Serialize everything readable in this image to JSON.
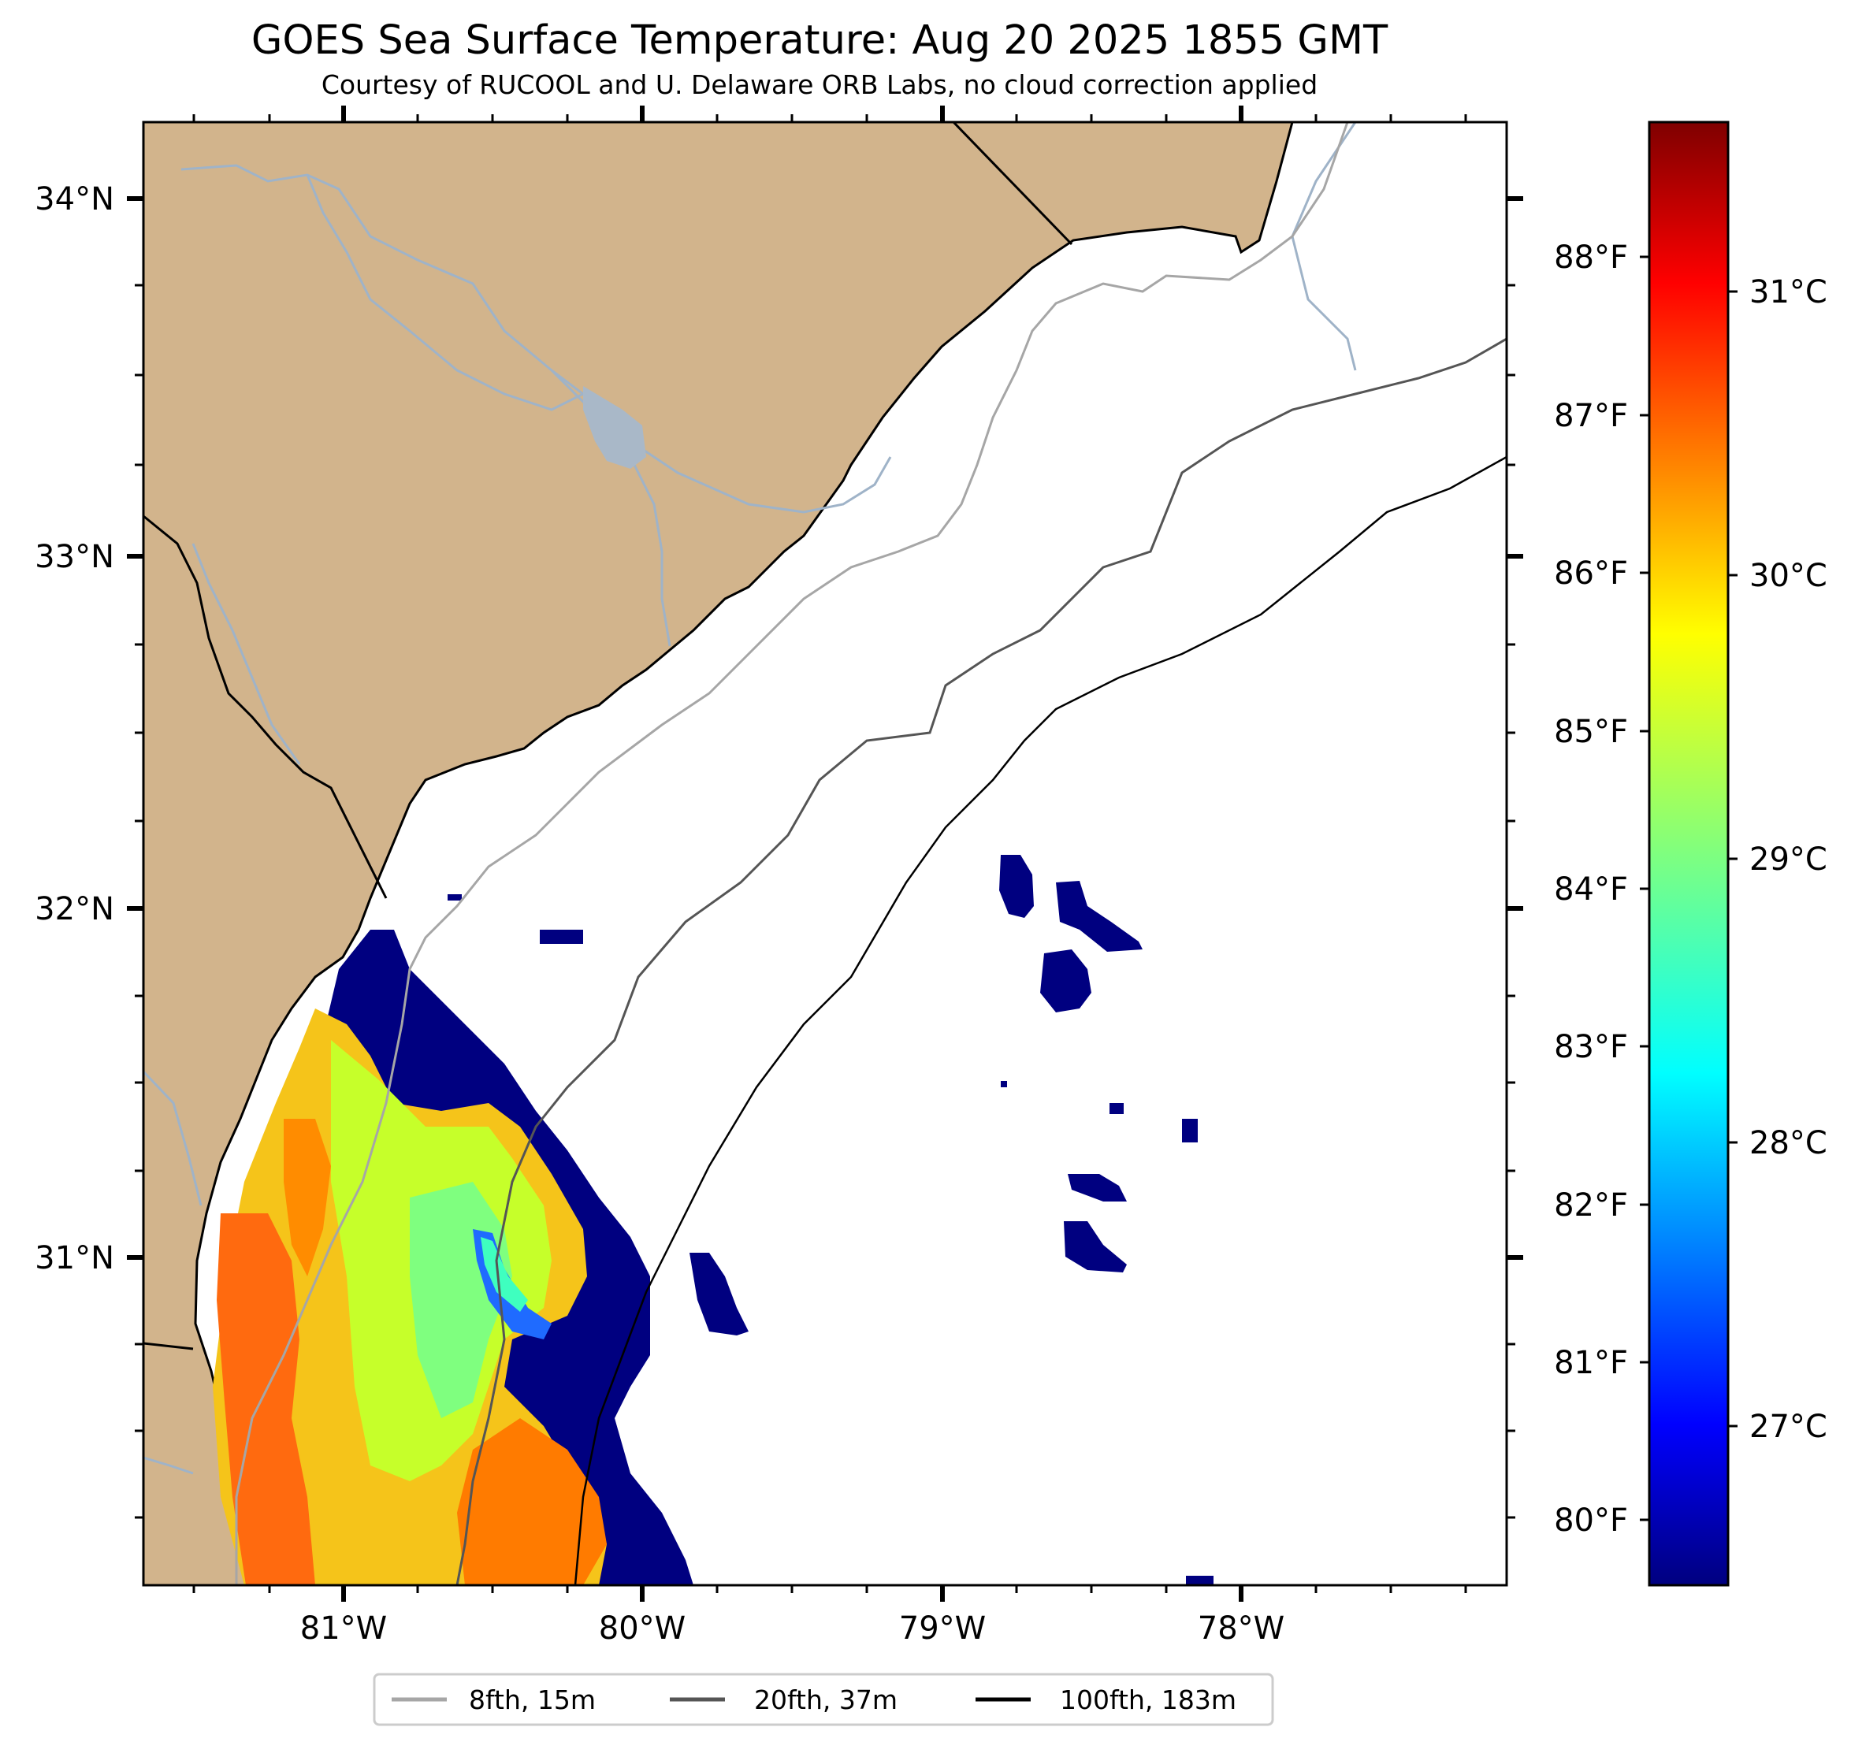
{
  "title": "GOES Sea Surface Temperature: Aug 20 2025 1855 GMT",
  "subtitle": "Courtesy of RUCOOL and U. Delaware ORB Labs, no cloud correction applied",
  "map": {
    "lat_labels": [
      "34°N",
      "33°N",
      "32°N",
      "31°N"
    ],
    "lon_labels": [
      "81°W",
      "80°W",
      "79°W",
      "78°W"
    ]
  },
  "colorbar": {
    "fahrenheit_labels": [
      "88°F",
      "87°F",
      "86°F",
      "85°F",
      "84°F",
      "83°F",
      "82°F",
      "81°F",
      "80°F"
    ],
    "celsius_labels": [
      "31°C",
      "30°C",
      "29°C",
      "28°C",
      "27°C"
    ],
    "colormap": "jet"
  },
  "legend": {
    "items": [
      {
        "label": "8fth, 15m",
        "color": "#a6a6a6"
      },
      {
        "label": "20fth, 37m",
        "color": "#555555"
      },
      {
        "label": "100fth, 183m",
        "color": "#000000"
      }
    ]
  },
  "colors": {
    "land": "#d2b48c",
    "ocean": "#ffffff",
    "river": "#9fb3c8",
    "cloud_mask": "#000080"
  }
}
